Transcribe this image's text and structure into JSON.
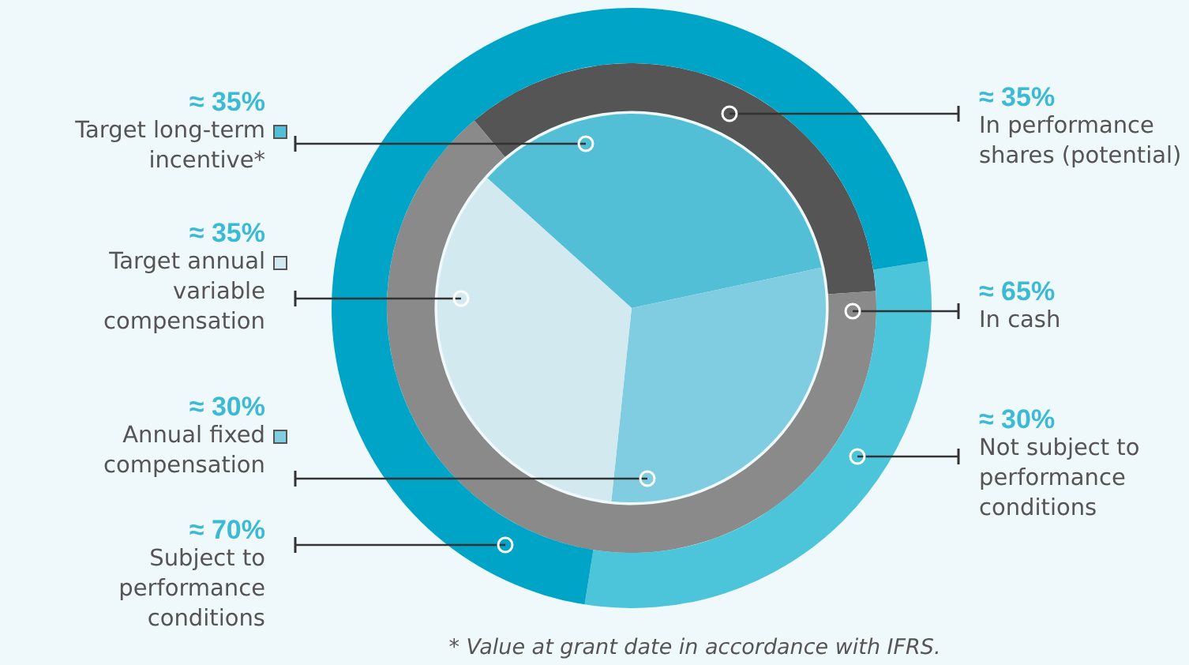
{
  "chart_data": [
    {
      "type": "pie",
      "categories": [
        "Target long-term incentive*",
        "Annual fixed compensation",
        "Target annual variable compensation"
      ],
      "values": [
        35,
        30,
        35
      ],
      "value_labels": [
        "≈ 35%",
        "≈ 30%",
        "≈ 35%"
      ],
      "colors": [
        "#52bfd6",
        "#80cce0",
        "#d2e9ef"
      ],
      "legend": "left",
      "annotations": [
        "* Value at grant date in accordance with IFRS."
      ]
    },
    {
      "type": "donut",
      "categories": [
        "In performance shares (potential)",
        "In cash"
      ],
      "values": [
        35,
        65
      ],
      "value_labels": [
        "≈ 35%",
        "≈ 65%"
      ],
      "colors": [
        "#555555",
        "#8a8a8a"
      ]
    },
    {
      "type": "donut",
      "categories": [
        "Not subject to performance conditions",
        "Subject to performance conditions"
      ],
      "values": [
        30,
        70
      ],
      "value_labels": [
        "≈ 30%",
        "≈ 70%"
      ],
      "colors": [
        "#4cc4da",
        "#00a4c6"
      ]
    }
  ]
}
